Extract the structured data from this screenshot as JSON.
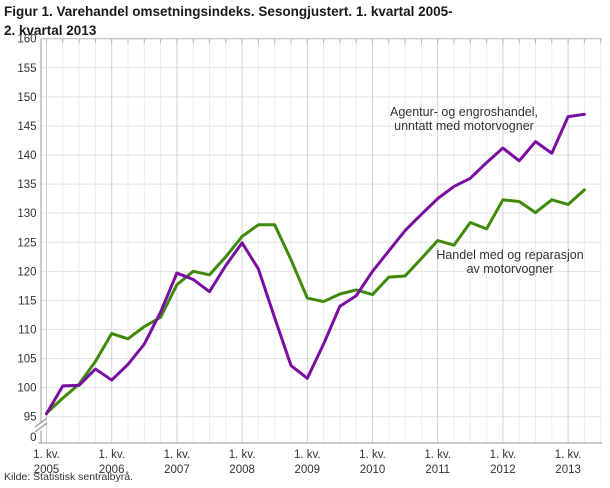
{
  "title": {
    "line1": "Figur 1. Varehandel omsetningsindeks. Sesongjustert. 1. kvartal 2005-",
    "line2": "2. kvartal 2013"
  },
  "source": "Kilde: Statistisk sentralbyrå.",
  "y_axis": {
    "tick_labels": [
      "95",
      "100",
      "105",
      "110",
      "115",
      "120",
      "125",
      "130",
      "135",
      "140",
      "145",
      "150",
      "155",
      "160"
    ],
    "zero_label": "0"
  },
  "x_axis": {
    "quarter_label": "1. kv.",
    "years": [
      "2005",
      "2006",
      "2007",
      "2008",
      "2009",
      "2010",
      "2011",
      "2012",
      "2013"
    ]
  },
  "annotations": [
    {
      "series": "Agentur- og engroshandel, unntatt med motorvogner",
      "lines": [
        "Agentur- og engroshandel,",
        "unntatt med motorvogner"
      ]
    },
    {
      "series": "Handel med og reparasjon av motorvogner",
      "lines": [
        "Handel med og reparasjon",
        "av motorvogner"
      ]
    }
  ],
  "chart_data": {
    "type": "line",
    "title": "Figur 1. Varehandel omsetningsindeks. Sesongjustert. 1. kvartal 2005-2. kvartal 2013",
    "xlabel": "Kvartal",
    "ylabel": "Omsetningsindeks",
    "ylim": [
      95,
      160
    ],
    "y_tick_step": 5,
    "y_axis_break_to_zero": true,
    "grid": true,
    "legend_position": "inline-annotations",
    "categories": [
      "2005-K1",
      "2005-K2",
      "2005-K3",
      "2005-K4",
      "2006-K1",
      "2006-K2",
      "2006-K3",
      "2006-K4",
      "2007-K1",
      "2007-K2",
      "2007-K3",
      "2007-K4",
      "2008-K1",
      "2008-K2",
      "2008-K3",
      "2008-K4",
      "2009-K1",
      "2009-K2",
      "2009-K3",
      "2009-K4",
      "2010-K1",
      "2010-K2",
      "2010-K3",
      "2010-K4",
      "2011-K1",
      "2011-K2",
      "2011-K3",
      "2011-K4",
      "2012-K1",
      "2012-K2",
      "2012-K3",
      "2012-K4",
      "2013-K1",
      "2013-K2"
    ],
    "series": [
      {
        "name": "Agentur- og engroshandel, unntatt med motorvogner",
        "color": "#7a0ea1",
        "values": [
          95.5,
          100.3,
          100.4,
          103.2,
          101.3,
          104.0,
          107.5,
          113.0,
          119.7,
          118.6,
          116.5,
          121.0,
          124.9,
          120.4,
          112.0,
          103.8,
          101.6,
          107.5,
          114.0,
          115.8,
          120.0,
          123.5,
          127.0,
          129.8,
          132.5,
          134.6,
          136.0,
          138.7,
          141.2,
          139.0,
          142.3,
          140.3,
          146.6,
          147.0
        ]
      },
      {
        "name": "Handel med og reparasjon av motorvogner",
        "color": "#3f8a0b",
        "values": [
          95.6,
          98.2,
          100.6,
          104.5,
          109.3,
          108.4,
          110.5,
          112.1,
          117.7,
          120.0,
          119.4,
          122.5,
          126.0,
          128.0,
          128.0,
          122.0,
          115.4,
          114.8,
          116.1,
          116.8,
          116.0,
          119.0,
          119.2,
          122.2,
          125.3,
          124.5,
          128.4,
          127.3,
          132.3,
          132.0,
          130.1,
          132.3,
          131.5,
          134.0
        ]
      }
    ]
  }
}
